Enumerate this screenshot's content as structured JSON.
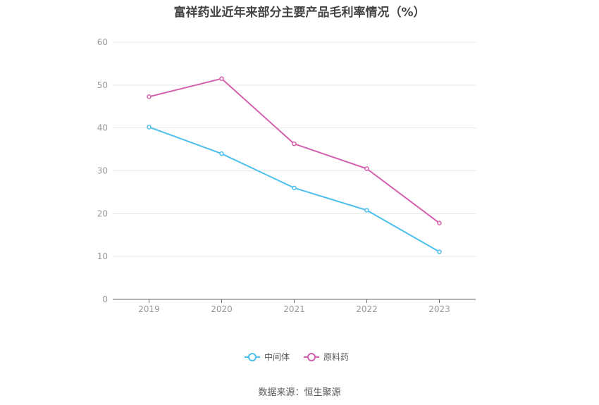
{
  "title": "富祥药业近年来部分主要产品毛利率情况（%）",
  "source": "数据来源：恒生聚源",
  "chart_data": {
    "type": "line",
    "title": "富祥药业近年来部分主要产品毛利率情况（%）",
    "x": [
      "2019",
      "2020",
      "2021",
      "2022",
      "2023"
    ],
    "ylim": [
      0,
      60
    ],
    "yticks": [
      0,
      10,
      20,
      30,
      40,
      50,
      60
    ],
    "grid": true,
    "legend_position": "bottom",
    "series": [
      {
        "name": "中间体",
        "color": "#4dbfed",
        "values": [
          40.2,
          34.0,
          26.0,
          20.8,
          11.1
        ]
      },
      {
        "name": "原料药",
        "color": "#d45fae",
        "values": [
          47.3,
          51.5,
          36.3,
          30.5,
          17.8
        ]
      }
    ]
  }
}
